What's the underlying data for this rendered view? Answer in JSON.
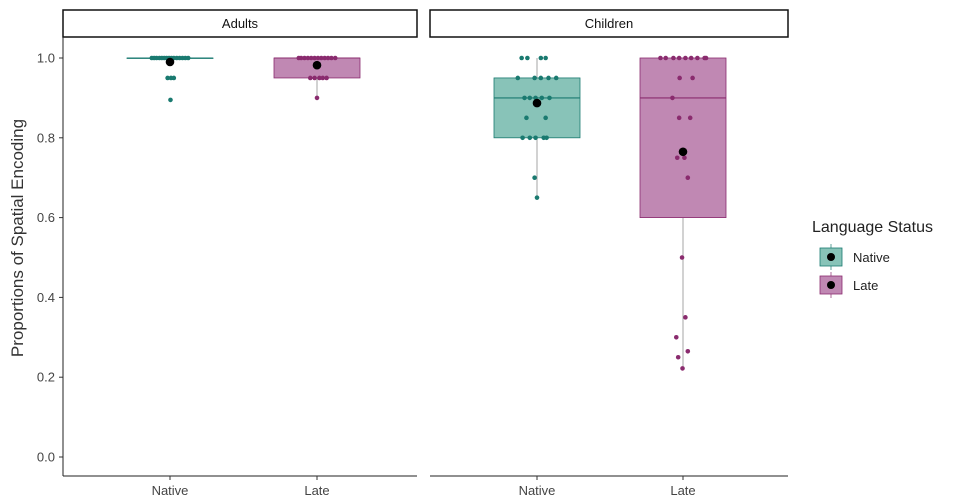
{
  "chart_data": {
    "type": "box",
    "ylabel": "Proportions of Spatial Encoding",
    "ylim": [
      0,
      1.0
    ],
    "yticks": [
      0.0,
      0.2,
      0.4,
      0.6,
      0.8,
      1.0
    ],
    "ytick_labels": [
      "0.0",
      "0.2",
      "0.4",
      "0.6",
      "0.8",
      "1.0"
    ],
    "categories": [
      "Native",
      "Late"
    ],
    "legend": {
      "title": "Language Status",
      "placement": "right",
      "entries": [
        {
          "label": "Native",
          "color": "#1a7a70",
          "fill": "#88c3b8"
        },
        {
          "label": "Late",
          "color": "#8a2b6e",
          "fill": "#c088b3"
        }
      ]
    },
    "panels": [
      {
        "strip_label": "Adults",
        "groups": [
          {
            "category": "Native",
            "box": {
              "q1": 1.0,
              "median": 1.0,
              "q3": 1.0,
              "whisker_low": 1.0,
              "whisker_high": 1.0
            },
            "mean": 0.99,
            "points": [
              {
                "jitter": -0.38,
                "y": 1.0
              },
              {
                "jitter": -0.33,
                "y": 1.0
              },
              {
                "jitter": -0.28,
                "y": 1.0
              },
              {
                "jitter": -0.22,
                "y": 1.0
              },
              {
                "jitter": -0.17,
                "y": 1.0
              },
              {
                "jitter": -0.12,
                "y": 1.0
              },
              {
                "jitter": -0.07,
                "y": 1.0
              },
              {
                "jitter": -0.02,
                "y": 1.0
              },
              {
                "jitter": 0.03,
                "y": 1.0
              },
              {
                "jitter": 0.08,
                "y": 1.0
              },
              {
                "jitter": 0.14,
                "y": 1.0
              },
              {
                "jitter": 0.2,
                "y": 1.0
              },
              {
                "jitter": 0.26,
                "y": 1.0
              },
              {
                "jitter": 0.32,
                "y": 1.0
              },
              {
                "jitter": 0.38,
                "y": 1.0
              },
              {
                "jitter": -0.05,
                "y": 0.95
              },
              {
                "jitter": 0.02,
                "y": 0.95
              },
              {
                "jitter": 0.08,
                "y": 0.95
              },
              {
                "jitter": 0.01,
                "y": 0.895
              }
            ]
          },
          {
            "category": "Late",
            "box": {
              "q1": 0.95,
              "median": 1.0,
              "q3": 1.0,
              "whisker_low": 0.9,
              "whisker_high": 1.0
            },
            "mean": 0.982,
            "points": [
              {
                "jitter": -0.38,
                "y": 1.0
              },
              {
                "jitter": -0.33,
                "y": 1.0
              },
              {
                "jitter": -0.26,
                "y": 1.0
              },
              {
                "jitter": -0.19,
                "y": 1.0
              },
              {
                "jitter": -0.12,
                "y": 1.0
              },
              {
                "jitter": -0.05,
                "y": 1.0
              },
              {
                "jitter": 0.02,
                "y": 1.0
              },
              {
                "jitter": 0.09,
                "y": 1.0
              },
              {
                "jitter": 0.16,
                "y": 1.0
              },
              {
                "jitter": 0.23,
                "y": 1.0
              },
              {
                "jitter": 0.3,
                "y": 1.0
              },
              {
                "jitter": 0.38,
                "y": 1.0
              },
              {
                "jitter": -0.14,
                "y": 0.95
              },
              {
                "jitter": -0.05,
                "y": 0.95
              },
              {
                "jitter": 0.05,
                "y": 0.95
              },
              {
                "jitter": 0.12,
                "y": 0.95
              },
              {
                "jitter": 0.2,
                "y": 0.95
              },
              {
                "jitter": 0.0,
                "y": 0.9
              }
            ]
          }
        ]
      },
      {
        "strip_label": "Children",
        "groups": [
          {
            "category": "Native",
            "box": {
              "q1": 0.8,
              "median": 0.9,
              "q3": 0.95,
              "whisker_low": 0.65,
              "whisker_high": 1.0
            },
            "mean": 0.887,
            "points": [
              {
                "jitter": -0.32,
                "y": 1.0
              },
              {
                "jitter": -0.2,
                "y": 1.0
              },
              {
                "jitter": 0.08,
                "y": 1.0
              },
              {
                "jitter": 0.18,
                "y": 1.0
              },
              {
                "jitter": -0.4,
                "y": 0.95
              },
              {
                "jitter": -0.05,
                "y": 0.95
              },
              {
                "jitter": 0.08,
                "y": 0.95
              },
              {
                "jitter": 0.24,
                "y": 0.95
              },
              {
                "jitter": 0.4,
                "y": 0.95
              },
              {
                "jitter": -0.26,
                "y": 0.9
              },
              {
                "jitter": -0.15,
                "y": 0.9
              },
              {
                "jitter": -0.03,
                "y": 0.9
              },
              {
                "jitter": 0.1,
                "y": 0.9
              },
              {
                "jitter": 0.26,
                "y": 0.9
              },
              {
                "jitter": -0.22,
                "y": 0.85
              },
              {
                "jitter": 0.18,
                "y": 0.85
              },
              {
                "jitter": -0.3,
                "y": 0.8
              },
              {
                "jitter": -0.15,
                "y": 0.8
              },
              {
                "jitter": -0.03,
                "y": 0.8
              },
              {
                "jitter": 0.14,
                "y": 0.8
              },
              {
                "jitter": 0.2,
                "y": 0.8
              },
              {
                "jitter": -0.05,
                "y": 0.7
              },
              {
                "jitter": 0.0,
                "y": 0.65
              }
            ]
          },
          {
            "category": "Late",
            "box": {
              "q1": 0.6,
              "median": 0.9,
              "q3": 1.0,
              "whisker_low": 0.22,
              "whisker_high": 1.0
            },
            "mean": 0.765,
            "points": [
              {
                "jitter": -0.47,
                "y": 1.0
              },
              {
                "jitter": -0.36,
                "y": 1.0
              },
              {
                "jitter": -0.2,
                "y": 1.0
              },
              {
                "jitter": -0.08,
                "y": 1.0
              },
              {
                "jitter": 0.05,
                "y": 1.0
              },
              {
                "jitter": 0.17,
                "y": 1.0
              },
              {
                "jitter": 0.3,
                "y": 1.0
              },
              {
                "jitter": 0.45,
                "y": 1.0
              },
              {
                "jitter": 0.48,
                "y": 1.0
              },
              {
                "jitter": -0.07,
                "y": 0.95
              },
              {
                "jitter": 0.2,
                "y": 0.95
              },
              {
                "jitter": -0.22,
                "y": 0.9
              },
              {
                "jitter": -0.08,
                "y": 0.85
              },
              {
                "jitter": 0.15,
                "y": 0.85
              },
              {
                "jitter": -0.12,
                "y": 0.75
              },
              {
                "jitter": 0.03,
                "y": 0.75
              },
              {
                "jitter": 0.1,
                "y": 0.7
              },
              {
                "jitter": -0.02,
                "y": 0.5
              },
              {
                "jitter": 0.05,
                "y": 0.35
              },
              {
                "jitter": -0.14,
                "y": 0.3
              },
              {
                "jitter": -0.1,
                "y": 0.25
              },
              {
                "jitter": 0.1,
                "y": 0.265
              },
              {
                "jitter": -0.01,
                "y": 0.222
              }
            ]
          }
        ]
      }
    ]
  }
}
